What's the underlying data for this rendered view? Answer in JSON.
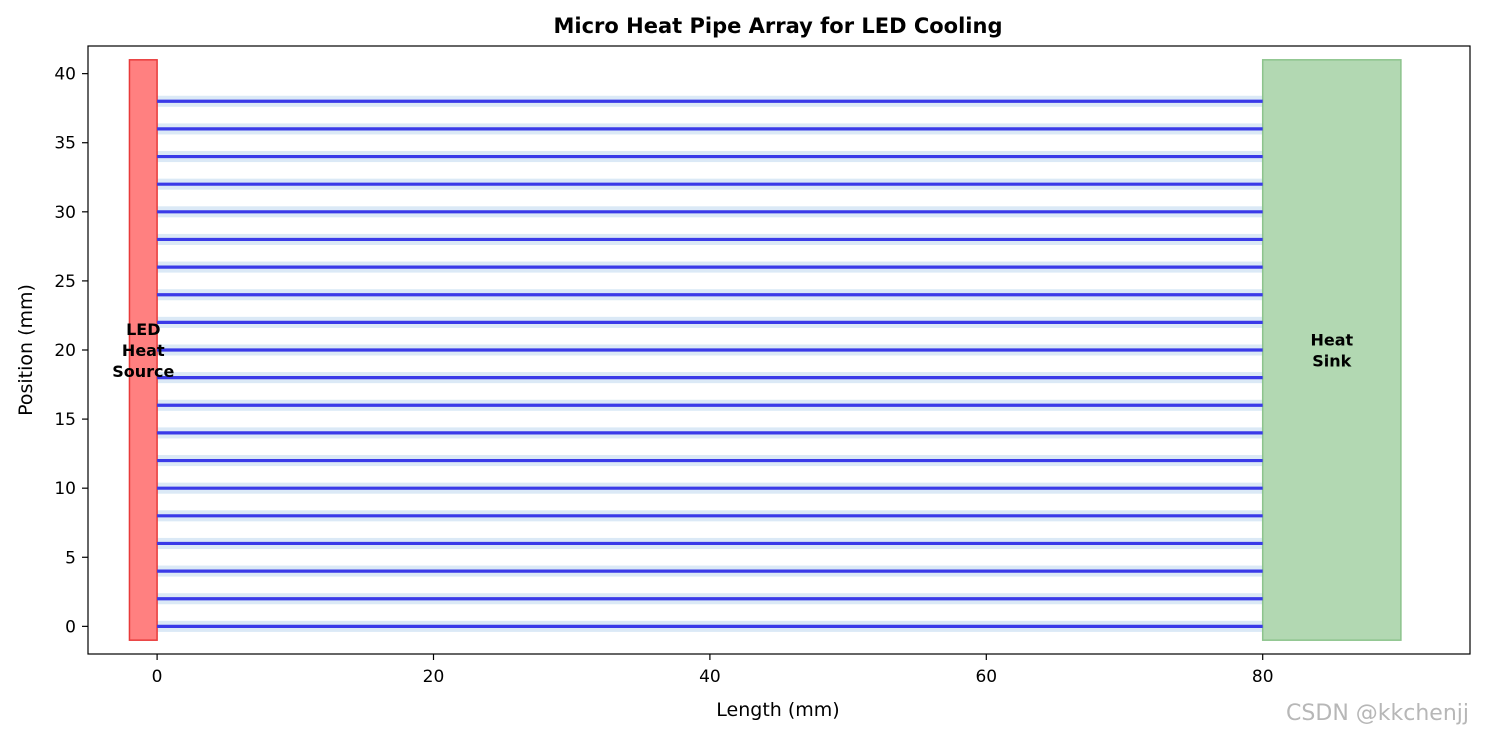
{
  "watermark": "CSDN @kkchenjj",
  "chart_data": {
    "type": "line",
    "title": "Micro Heat Pipe Array for LED Cooling",
    "xlabel": "Length (mm)",
    "ylabel": "Position (mm)",
    "xlim": [
      -5,
      95
    ],
    "ylim": [
      -2,
      42
    ],
    "xticks": [
      0,
      20,
      40,
      60,
      80
    ],
    "yticks": [
      0,
      5,
      10,
      15,
      20,
      25,
      30,
      35,
      40
    ],
    "grid": false,
    "pipes": {
      "x_start": 0,
      "x_end": 80,
      "y": [
        0,
        2,
        4,
        6,
        8,
        10,
        12,
        14,
        16,
        18,
        20,
        22,
        24,
        26,
        28,
        30,
        32,
        34,
        36,
        38
      ],
      "color": "#3a3ae8",
      "band_color": "#dbe9f6"
    },
    "regions": [
      {
        "id": "led-heat-source",
        "label_lines": [
          "LED",
          "Heat",
          "Source"
        ],
        "x": [
          -2,
          0
        ],
        "y": [
          -1,
          41
        ],
        "fill": "#ff8080",
        "stroke": "#e83a3a"
      },
      {
        "id": "heat-sink",
        "label_lines": [
          "Heat",
          "Sink"
        ],
        "x": [
          80,
          90
        ],
        "y": [
          -1,
          41
        ],
        "fill": "#b2d8b2",
        "stroke": "#8cc48c"
      }
    ]
  }
}
